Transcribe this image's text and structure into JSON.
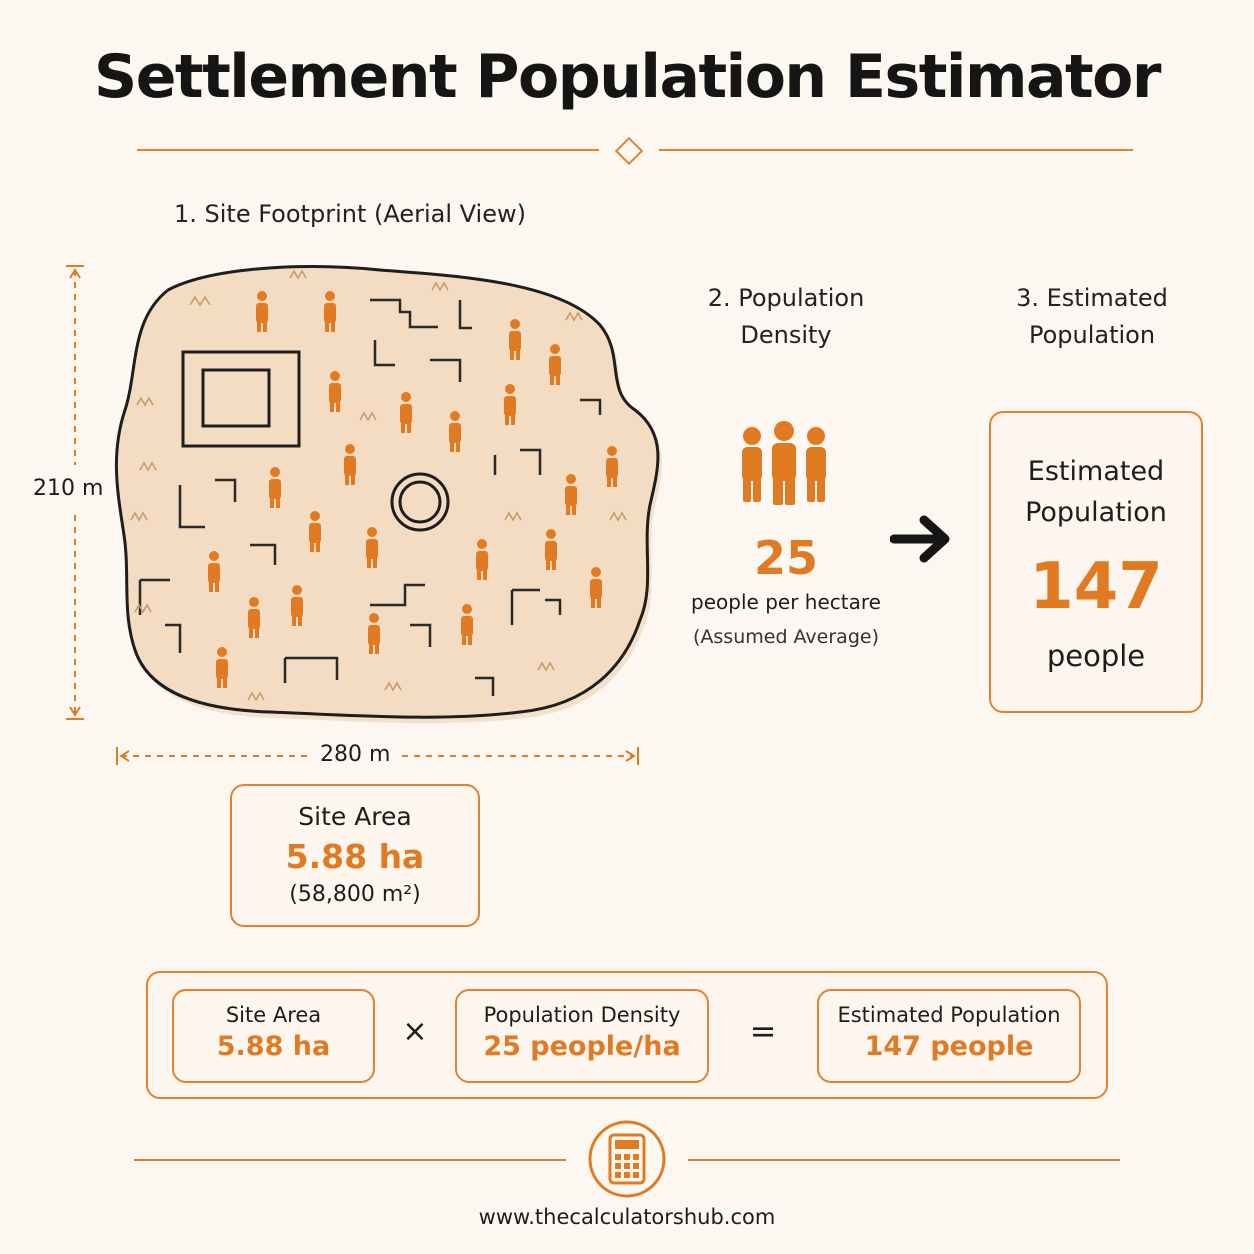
{
  "title": "Settlement Population Estimator",
  "site": {
    "heading": "1. Site Footprint (Aerial View)",
    "height_label": "210 m",
    "width_label": "280 m"
  },
  "density": {
    "heading_line1": "2. Population",
    "heading_line2": "Density",
    "value": "25",
    "unit": "people per hectare",
    "note": "(Assumed Average)",
    "icon": "people-group-icon"
  },
  "estimate": {
    "heading_line1": "3. Estimated",
    "heading_line2": "Population",
    "card_line1": "Estimated",
    "card_line2": "Population",
    "value": "147",
    "unit": "people"
  },
  "site_area": {
    "label": "Site Area",
    "value": "5.88 ha",
    "sub": "(58,800 m²)"
  },
  "formula": {
    "a_label": "Site Area",
    "a_value": "5.88 ha",
    "op1": "×",
    "b_label": "Population Density",
    "b_value": "25 people/ha",
    "op2": "=",
    "c_label": "Estimated Population",
    "c_value": "147 people"
  },
  "footer": {
    "icon": "calculator-icon",
    "url": "www.thecalculatorshub.com"
  },
  "colors": {
    "accent": "#e4802e",
    "background": "#fcf7f1",
    "site_fill": "#f3dcc1"
  }
}
